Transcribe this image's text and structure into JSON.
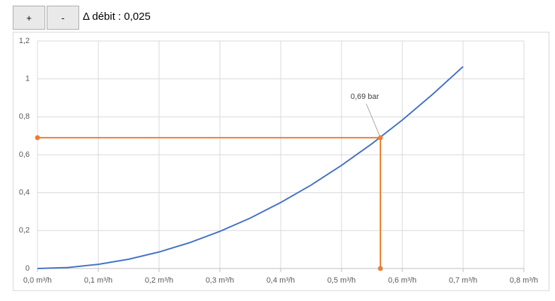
{
  "controls": {
    "buttons": [
      "+",
      "-"
    ],
    "label": "Δ débit : 0,025"
  },
  "chart_data": {
    "type": "line",
    "xlim": [
      0,
      0.8
    ],
    "ylim": [
      0,
      1.2
    ],
    "xticks": [
      {
        "value": 0,
        "label": "0,0 m³/h"
      },
      {
        "value": 0.1,
        "label": "0,1 m³/h"
      },
      {
        "value": 0.2,
        "label": "0,2 m³/h"
      },
      {
        "value": 0.3,
        "label": "0,3 m³/h"
      },
      {
        "value": 0.4,
        "label": "0,4 m³/h"
      },
      {
        "value": 0.5,
        "label": "0,5 m³/h"
      },
      {
        "value": 0.6,
        "label": "0,6 m³/h"
      },
      {
        "value": 0.7,
        "label": "0,7 m³/h"
      },
      {
        "value": 0.8,
        "label": "0,8 m³/h"
      }
    ],
    "yticks": [
      0,
      {
        "value": 0.2,
        "label": "0,2"
      },
      {
        "value": 0.4,
        "label": "0,4"
      },
      {
        "value": 0.6,
        "label": "0,6"
      },
      {
        "value": 0.8,
        "label": "0,8"
      },
      1,
      {
        "value": 1.2,
        "label": "1,2"
      }
    ],
    "grid": true,
    "series": [
      {
        "color": "#4472c4",
        "markers": false,
        "x": [
          0,
          0.05,
          0.1,
          0.15,
          0.2,
          0.25,
          0.3,
          0.35,
          0.4,
          0.45,
          0.5,
          0.55,
          0.6,
          0.65,
          0.7
        ],
        "values": [
          0,
          0.005,
          0.022,
          0.049,
          0.087,
          0.136,
          0.196,
          0.266,
          0.348,
          0.44,
          0.544,
          0.658,
          0.783,
          0.919,
          1.065
        ]
      },
      {
        "color": "#ed7d31",
        "markers": true,
        "x": [
          0,
          0.564,
          0.564
        ],
        "values": [
          0.69,
          0.69,
          0
        ]
      }
    ],
    "annotation": "0,69 bar"
  }
}
